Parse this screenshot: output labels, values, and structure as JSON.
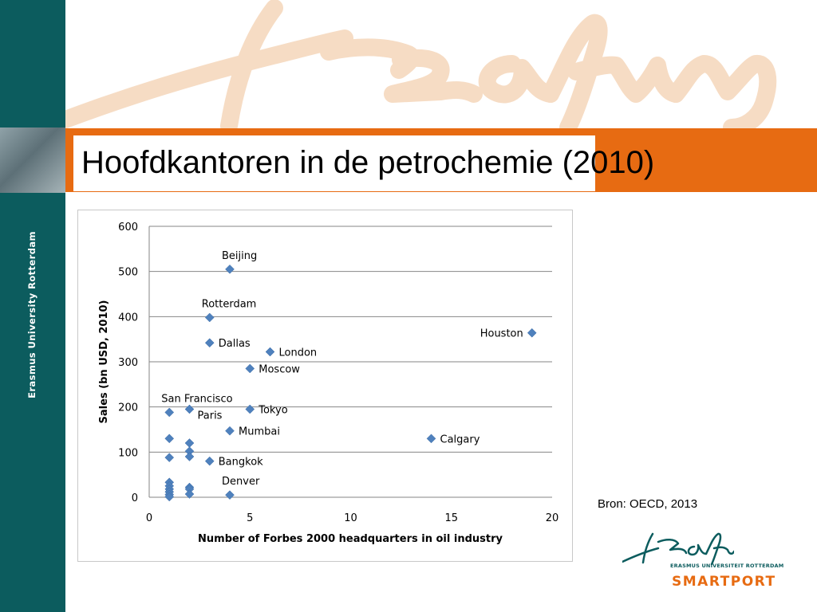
{
  "slide": {
    "title": "Hoofdkantoren in de petrochemie (2010)",
    "sidebar_text": "Erasmus University Rotterdam",
    "source": "Bron: OECD, 2013",
    "logo": {
      "line1": "ERASMUS UNIVERSITEIT ROTTERDAM",
      "line2": "SMARTPORT"
    },
    "colors": {
      "sidebar": "#0c5c5e",
      "title_bar": "#e76b12",
      "watermark": "#f6dcc4",
      "marker": "#4f81bd"
    }
  },
  "chart_data": {
    "type": "scatter",
    "xlabel": "Number of Forbes 2000 headquarters in oil industry",
    "ylabel": "Sales (bn USD, 2010)",
    "xlim": [
      0,
      20
    ],
    "ylim": [
      0,
      600
    ],
    "xticks": [
      0,
      5,
      10,
      15,
      20
    ],
    "yticks": [
      0,
      100,
      200,
      300,
      400,
      500,
      600
    ],
    "grid": "horizontal",
    "points": [
      {
        "x": 4,
        "y": 505,
        "label": "Beijing",
        "pos": "above-right"
      },
      {
        "x": 3,
        "y": 398,
        "label": "Rotterdam",
        "pos": "above-right"
      },
      {
        "x": 3,
        "y": 342,
        "label": "Dallas",
        "pos": "right"
      },
      {
        "x": 6,
        "y": 322,
        "label": "London",
        "pos": "right"
      },
      {
        "x": 5,
        "y": 285,
        "label": "Moscow",
        "pos": "right"
      },
      {
        "x": 19,
        "y": 364,
        "label": "Houston",
        "pos": "left"
      },
      {
        "x": 1,
        "y": 188,
        "label": "San Francisco",
        "pos": "above-right"
      },
      {
        "x": 2,
        "y": 195,
        "label": "Paris",
        "pos": "below-right"
      },
      {
        "x": 5,
        "y": 195,
        "label": "Tokyo",
        "pos": "right"
      },
      {
        "x": 4,
        "y": 147,
        "label": "Mumbai",
        "pos": "right"
      },
      {
        "x": 14,
        "y": 130,
        "label": "Calgary",
        "pos": "right"
      },
      {
        "x": 3,
        "y": 80,
        "label": "Bangkok",
        "pos": "right"
      },
      {
        "x": 4,
        "y": 5,
        "label": "Denver",
        "pos": "above-right"
      },
      {
        "x": 1,
        "y": 130,
        "label": ""
      },
      {
        "x": 2,
        "y": 120,
        "label": ""
      },
      {
        "x": 2,
        "y": 102,
        "label": ""
      },
      {
        "x": 2,
        "y": 90,
        "label": ""
      },
      {
        "x": 1,
        "y": 88,
        "label": ""
      },
      {
        "x": 1,
        "y": 33,
        "label": ""
      },
      {
        "x": 1,
        "y": 25,
        "label": ""
      },
      {
        "x": 1,
        "y": 18,
        "label": ""
      },
      {
        "x": 1,
        "y": 12,
        "label": ""
      },
      {
        "x": 1,
        "y": 6,
        "label": ""
      },
      {
        "x": 1,
        "y": 1,
        "label": ""
      },
      {
        "x": 2,
        "y": 22,
        "label": ""
      },
      {
        "x": 2,
        "y": 18,
        "label": ""
      },
      {
        "x": 2,
        "y": 7,
        "label": ""
      }
    ]
  }
}
